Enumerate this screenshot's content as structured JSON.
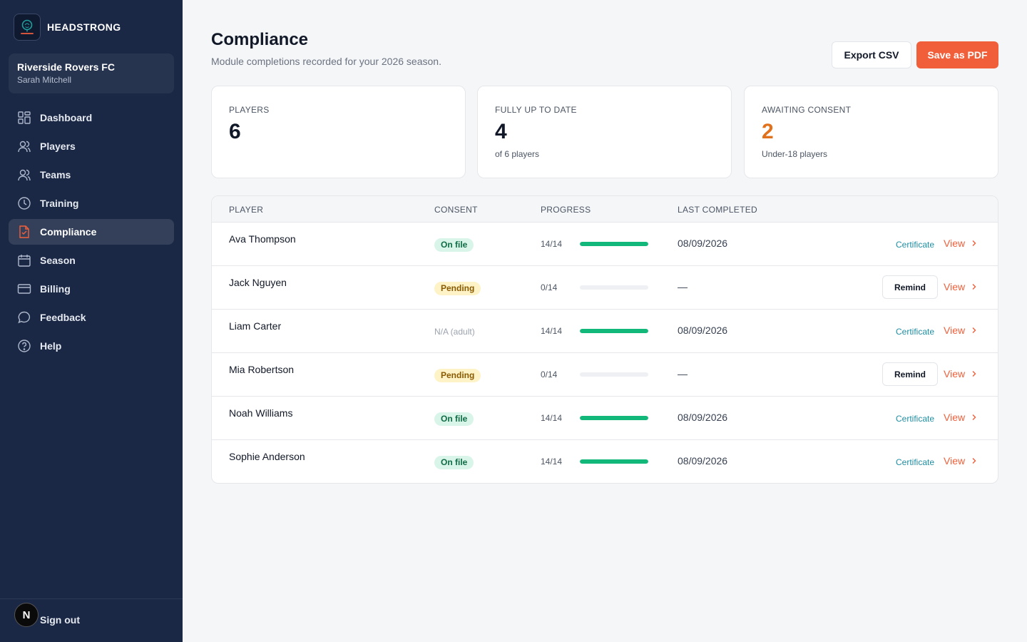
{
  "brand": {
    "name": "HEADSTRONG",
    "logo_text": "HEADSTRONG"
  },
  "club": {
    "name": "Riverside Rovers FC",
    "user": "Sarah Mitchell"
  },
  "nav": [
    {
      "label": "Dashboard",
      "icon": "grid-icon"
    },
    {
      "label": "Players",
      "icon": "user-icon"
    },
    {
      "label": "Teams",
      "icon": "users-icon"
    },
    {
      "label": "Training",
      "icon": "clock-icon"
    },
    {
      "label": "Compliance",
      "icon": "document-check-icon",
      "active": true
    },
    {
      "label": "Season",
      "icon": "calendar-icon"
    },
    {
      "label": "Billing",
      "icon": "credit-card-icon"
    },
    {
      "label": "Feedback",
      "icon": "chat-icon"
    },
    {
      "label": "Help",
      "icon": "help-circle-icon"
    }
  ],
  "footer": {
    "avatar": "N",
    "signout": "Sign out"
  },
  "header": {
    "title": "Compliance",
    "subtitle": "Module completions recorded for your 2026 season.",
    "export_label": "Export CSV",
    "pdf_label": "Save as PDF"
  },
  "stats": [
    {
      "label": "PLAYERS",
      "value": "6",
      "sub": ""
    },
    {
      "label": "FULLY UP TO DATE",
      "value": "4",
      "sub": "of 6 players"
    },
    {
      "label": "AWAITING CONSENT",
      "value": "2",
      "sub": "Under-18 players"
    }
  ],
  "table": {
    "columns": [
      "PLAYER",
      "CONSENT",
      "PROGRESS",
      "LAST COMPLETED"
    ],
    "rows": [
      {
        "name": "Ava Thompson",
        "consent": "On file",
        "consent_type": "onfile",
        "progress": "14/14",
        "progress_fraction": 1,
        "last": "08/09/2026",
        "action": "Certificate",
        "view": "View"
      },
      {
        "name": "Jack Nguyen",
        "consent": "Pending",
        "consent_type": "pending",
        "progress": "0/14",
        "progress_fraction": 0,
        "last": "—",
        "action": "Remind",
        "view": "View"
      },
      {
        "name": "Liam Carter",
        "consent": "N/A (adult)",
        "consent_type": "na",
        "progress": "14/14",
        "progress_fraction": 1,
        "last": "08/09/2026",
        "action": "Certificate",
        "view": "View"
      },
      {
        "name": "Mia Robertson",
        "consent": "Pending",
        "consent_type": "pending",
        "progress": "0/14",
        "progress_fraction": 0,
        "last": "—",
        "action": "Remind",
        "view": "View"
      },
      {
        "name": "Noah Williams",
        "consent": "On file",
        "consent_type": "onfile",
        "progress": "14/14",
        "progress_fraction": 1,
        "last": "08/09/2026",
        "action": "Certificate",
        "view": "View"
      },
      {
        "name": "Sophie Anderson",
        "consent": "On file",
        "consent_type": "onfile",
        "progress": "14/14",
        "progress_fraction": 1,
        "last": "08/09/2026",
        "action": "Certificate",
        "view": "View"
      }
    ]
  },
  "colors": {
    "sidebar": "#1b2845",
    "accent": "#f15f3a",
    "progress": "#12b87a",
    "link": "#1f8ea3",
    "warn": "#e0711d"
  }
}
